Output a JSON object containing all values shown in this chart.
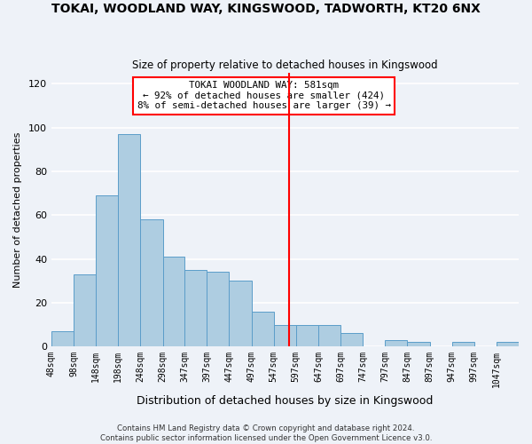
{
  "title": "TOKAI, WOODLAND WAY, KINGSWOOD, TADWORTH, KT20 6NX",
  "subtitle": "Size of property relative to detached houses in Kingswood",
  "xlabel": "Distribution of detached houses by size in Kingswood",
  "ylabel": "Number of detached properties",
  "bar_labels": [
    "48sqm",
    "98sqm",
    "148sqm",
    "198sqm",
    "248sqm",
    "298sqm",
    "347sqm",
    "397sqm",
    "447sqm",
    "497sqm",
    "547sqm",
    "597sqm",
    "647sqm",
    "697sqm",
    "747sqm",
    "797sqm",
    "847sqm",
    "897sqm",
    "947sqm",
    "997sqm",
    "1047sqm"
  ],
  "bar_values": [
    7,
    33,
    69,
    97,
    58,
    41,
    35,
    34,
    30,
    16,
    10,
    10,
    10,
    6,
    0,
    3,
    2,
    0,
    2,
    0,
    2
  ],
  "bar_edges": [
    48,
    98,
    148,
    198,
    248,
    298,
    347,
    397,
    447,
    497,
    547,
    597,
    647,
    697,
    747,
    797,
    847,
    897,
    947,
    997,
    1047,
    1097
  ],
  "bar_color": "#aecde1",
  "bar_edge_color": "#5b9dc9",
  "vline_x": 581,
  "vline_color": "red",
  "annotation_title": "TOKAI WOODLAND WAY: 581sqm",
  "annotation_line1": "← 92% of detached houses are smaller (424)",
  "annotation_line2": "8% of semi-detached houses are larger (39) →",
  "annotation_box_color": "red",
  "ylim": [
    0,
    125
  ],
  "yticks": [
    0,
    20,
    40,
    60,
    80,
    100,
    120
  ],
  "footer1": "Contains HM Land Registry data © Crown copyright and database right 2024.",
  "footer2": "Contains public sector information licensed under the Open Government Licence v3.0.",
  "background_color": "#eef2f8",
  "grid_color": "white"
}
